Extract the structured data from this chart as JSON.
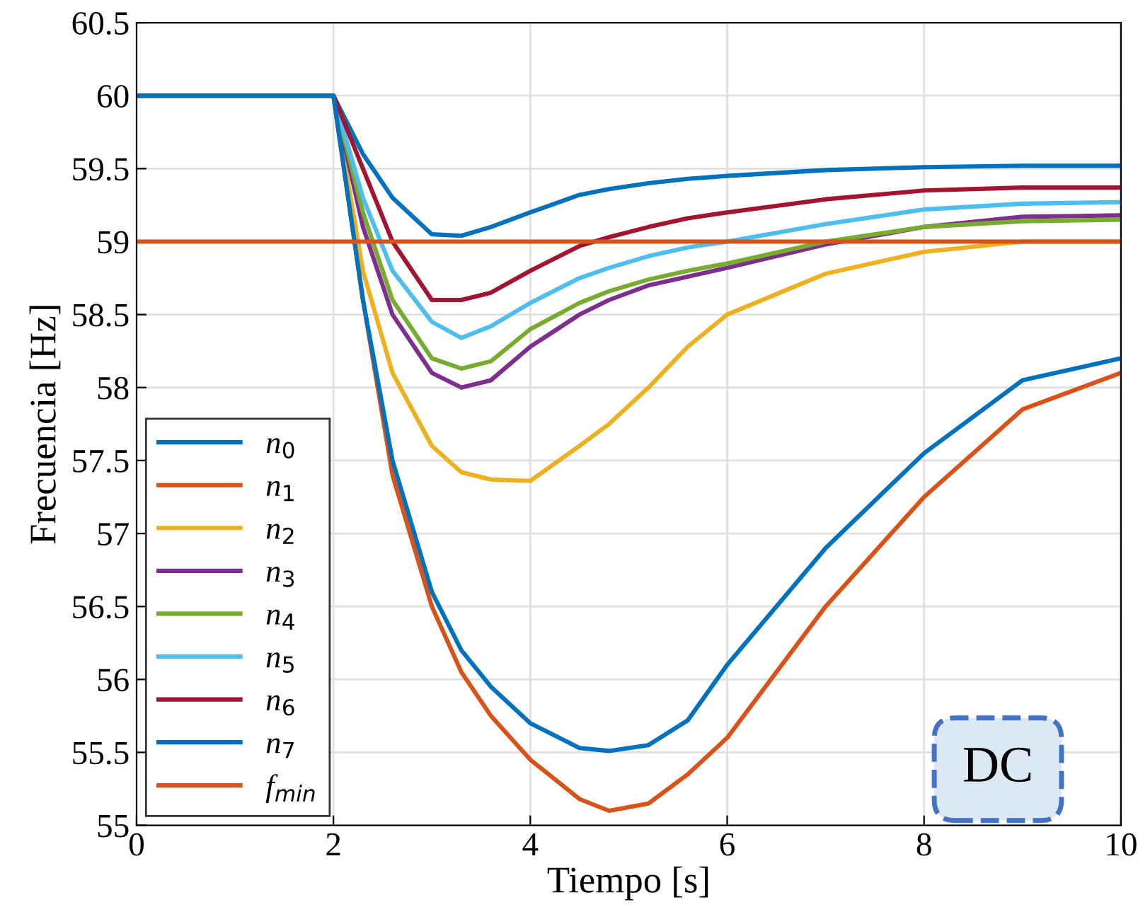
{
  "chart_data": {
    "type": "line",
    "xlabel": "Tiempo [s]",
    "ylabel": "Frecuencia [Hz]",
    "x": [
      0,
      2,
      2.3,
      2.6,
      3.0,
      3.3,
      3.6,
      4.0,
      4.5,
      4.8,
      5.2,
      5.6,
      6,
      7,
      8,
      9,
      10
    ],
    "series": [
      {
        "name": "n$_{0}$",
        "color": "#0072bd",
        "values": [
          60,
          60,
          59.6,
          59.3,
          59.05,
          59.04,
          59.1,
          59.2,
          59.32,
          59.36,
          59.4,
          59.43,
          59.45,
          59.49,
          59.51,
          59.52,
          59.52
        ]
      },
      {
        "name": "n$_{1}$",
        "color": "#d95319",
        "values": [
          60,
          60,
          58.6,
          57.4,
          56.5,
          56.05,
          55.75,
          55.45,
          55.18,
          55.1,
          55.15,
          55.35,
          55.6,
          56.5,
          57.25,
          57.85,
          58.1
        ]
      },
      {
        "name": "n$_{2}$",
        "color": "#edb120",
        "values": [
          60,
          60,
          58.8,
          58.1,
          57.6,
          57.42,
          57.37,
          57.36,
          57.6,
          57.75,
          58.0,
          58.28,
          58.5,
          58.78,
          58.93,
          59.0,
          59.0
        ]
      },
      {
        "name": "n$_{3}$",
        "color": "#7e2f8e",
        "values": [
          60,
          60,
          59.1,
          58.5,
          58.1,
          58.0,
          58.05,
          58.28,
          58.5,
          58.6,
          58.7,
          58.76,
          58.82,
          58.98,
          59.1,
          59.17,
          59.18
        ]
      },
      {
        "name": "n$_{4}$",
        "color": "#77ac30",
        "values": [
          60,
          60,
          59.2,
          58.6,
          58.2,
          58.13,
          58.18,
          58.4,
          58.58,
          58.66,
          58.74,
          58.8,
          58.85,
          59.0,
          59.1,
          59.14,
          59.15
        ]
      },
      {
        "name": "n$_{5}$",
        "color": "#4dbeee",
        "values": [
          60,
          60,
          59.3,
          58.8,
          58.45,
          58.34,
          58.42,
          58.58,
          58.75,
          58.82,
          58.9,
          58.96,
          59.0,
          59.12,
          59.22,
          59.26,
          59.27
        ]
      },
      {
        "name": "n$_{6}$",
        "color": "#a2142f",
        "values": [
          60,
          60,
          59.5,
          59.0,
          58.6,
          58.6,
          58.65,
          58.8,
          58.97,
          59.03,
          59.1,
          59.16,
          59.2,
          59.29,
          59.35,
          59.37,
          59.37
        ]
      },
      {
        "name": "n$_{7}$",
        "color": "#0072bd",
        "values": [
          60,
          60,
          58.6,
          57.5,
          56.6,
          56.2,
          55.95,
          55.7,
          55.53,
          55.51,
          55.55,
          55.72,
          56.1,
          56.9,
          57.55,
          58.05,
          58.2
        ]
      },
      {
        "name": "f$_{min}$",
        "color": "#d95319",
        "x": [
          0,
          10
        ],
        "values": [
          59,
          59
        ]
      }
    ],
    "xlim": [
      0,
      10
    ],
    "xticks": [
      0,
      2,
      4,
      6,
      8,
      10
    ],
    "ylim": [
      55,
      60.5
    ],
    "yticks": [
      55,
      55.5,
      56,
      56.5,
      57,
      57.5,
      58,
      58.5,
      59,
      59.5,
      60,
      60.5
    ],
    "grid": true,
    "legend": "lower left",
    "line_style": "solid",
    "marker": "none",
    "annotations": [
      "DC"
    ]
  }
}
